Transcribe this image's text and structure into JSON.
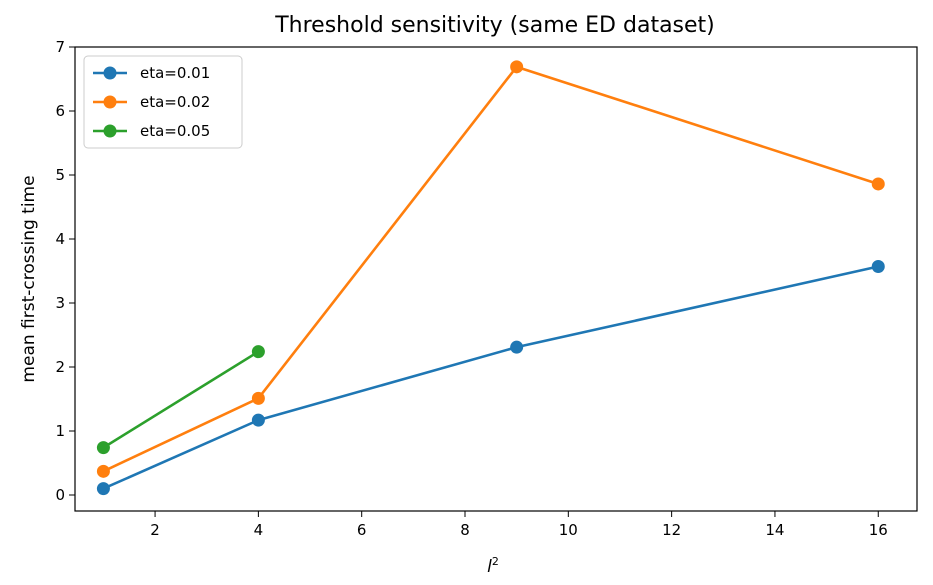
{
  "chart_data": {
    "type": "line",
    "title": "Threshold sensitivity (same ED dataset)",
    "xlabel": "l",
    "xlabel_sup": "2",
    "ylabel": "mean first-crossing time",
    "xlim": [
      0.45,
      16.75
    ],
    "ylim": [
      -0.25,
      7.0
    ],
    "xticks": [
      2,
      4,
      6,
      8,
      10,
      12,
      14,
      16
    ],
    "yticks": [
      0,
      1,
      2,
      3,
      4,
      5,
      6,
      7
    ],
    "grid": false,
    "legend_position": "top-left",
    "series": [
      {
        "name": "eta=0.01",
        "color": "#1f77b4",
        "x": [
          1,
          4,
          9,
          16
        ],
        "y": [
          0.1,
          1.17,
          2.31,
          3.57
        ]
      },
      {
        "name": "eta=0.02",
        "color": "#ff7f0e",
        "x": [
          1,
          4,
          9,
          16
        ],
        "y": [
          0.37,
          1.51,
          6.69,
          4.86
        ]
      },
      {
        "name": "eta=0.05",
        "color": "#2ca02c",
        "x": [
          1,
          4
        ],
        "y": [
          0.74,
          2.24
        ]
      }
    ]
  }
}
